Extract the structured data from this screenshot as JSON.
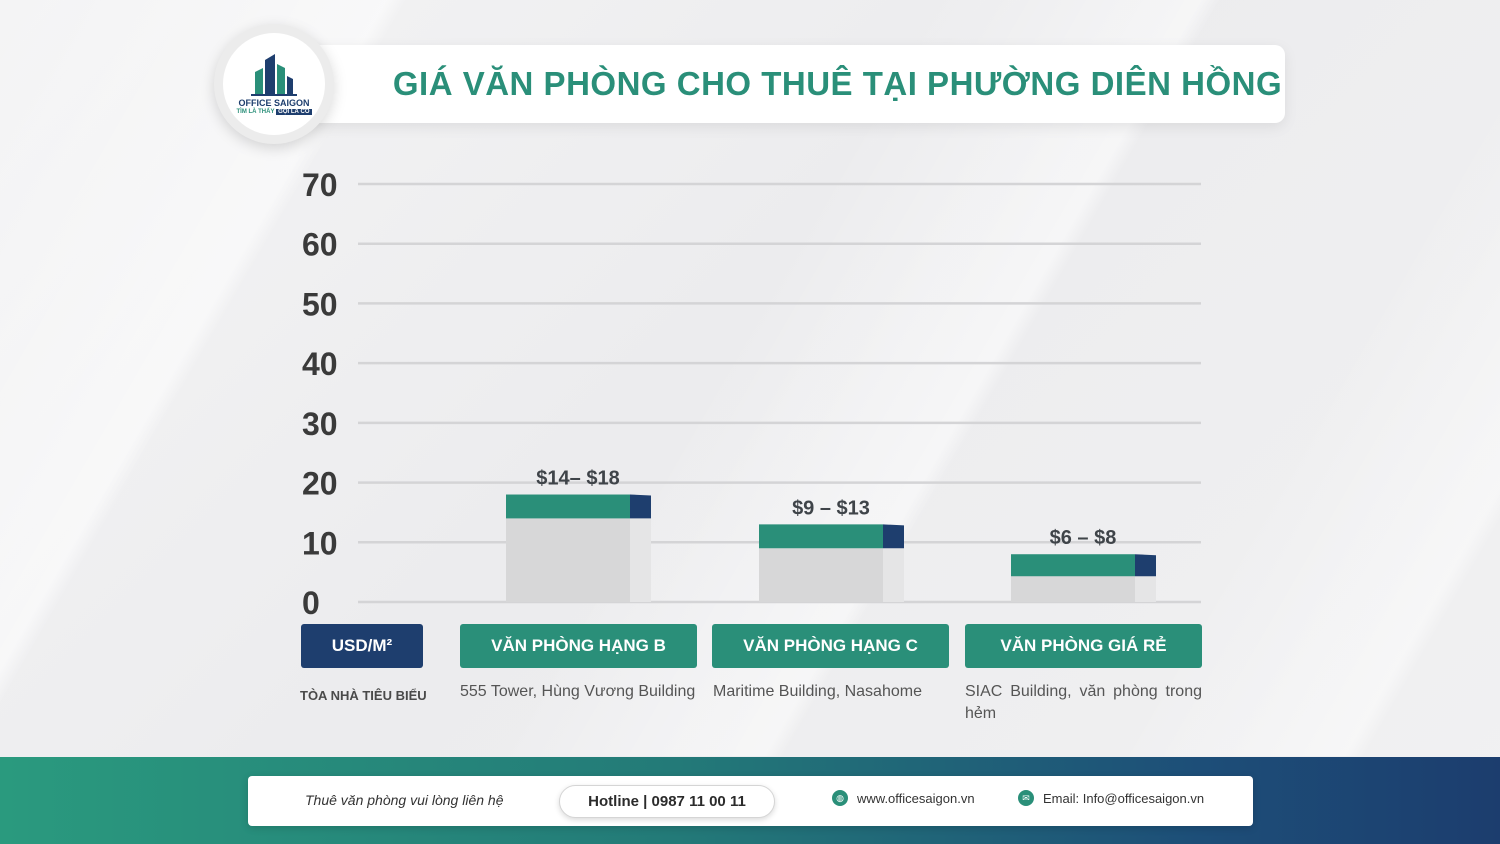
{
  "title": "GIÁ VĂN PHÒNG CHO THUÊ TẠI PHƯỜNG DIÊN HỒNG",
  "logo": {
    "name": "OFFICE SAIGON",
    "tagline_a": "TÌM LÀ THẤY",
    "tagline_b": "GỌI LÀ CÓ"
  },
  "colors": {
    "bar_top": "#2a8f79",
    "bar_accent": "#1e3e6e",
    "bar_body": "#d7d7d8",
    "bar_side": "#e5e5e6",
    "grid": "#d4d4d6"
  },
  "chart_data": {
    "type": "bar",
    "ylim": [
      0,
      70
    ],
    "yticks": [
      0,
      10,
      20,
      30,
      40,
      50,
      60,
      70
    ],
    "unit": "USD/M²",
    "categories": [
      "VĂN PHÒNG HẠNG B",
      "VĂN PHÒNG HẠNG C",
      "VĂN PHÒNG GIÁ RẺ"
    ],
    "ranges": [
      {
        "low": 14,
        "high": 18,
        "label": "$14– $18"
      },
      {
        "low": 9,
        "high": 13,
        "label": "$9 – $13"
      },
      {
        "low": 6,
        "high": 8,
        "label": "$6 – $8"
      }
    ],
    "grid": true
  },
  "representative": {
    "label": "TÒA NHÀ TIÊU BIỂU",
    "items": [
      "555 Tower, Hùng Vương Building",
      "Maritime Building, Nasahome",
      "SIAC Building, văn phòng trong hẻm"
    ]
  },
  "footer": {
    "cta": "Thuê văn phòng vui lòng liên hệ",
    "hotline": "Hotline | 0987 11 00 11",
    "website": "www.officesaigon.vn",
    "email": "Email: Info@officesaigon.vn",
    "website_icon": "globe-icon",
    "email_icon": "mail-icon"
  }
}
